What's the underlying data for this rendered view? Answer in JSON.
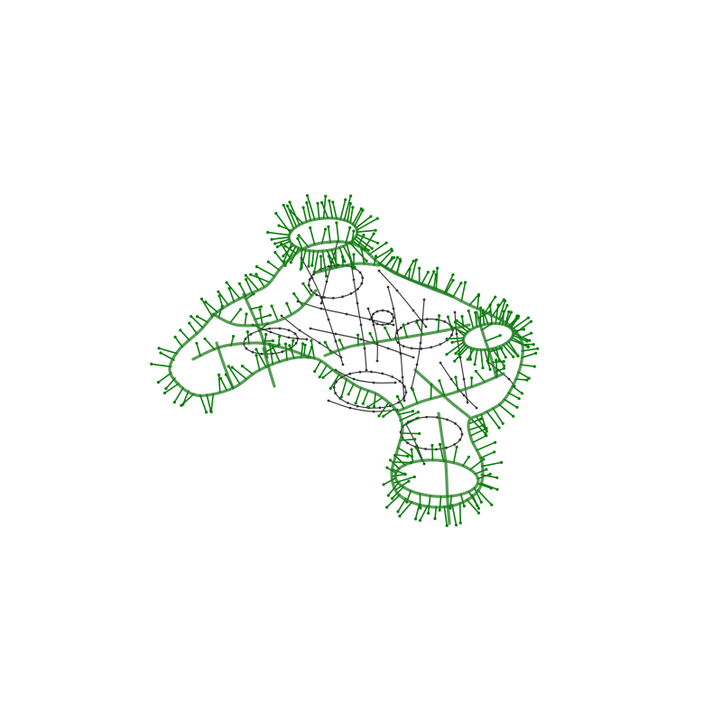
{
  "figure": {
    "kind": "wireframe-mesh-with-surface-normals",
    "subject": "game controller",
    "colors": {
      "background": "#ffffff",
      "feature_edges": "#1e7b1e",
      "normals": "#0a7d0a",
      "hidden_edges": "#1a1a1a",
      "vertices": "#333333"
    }
  }
}
